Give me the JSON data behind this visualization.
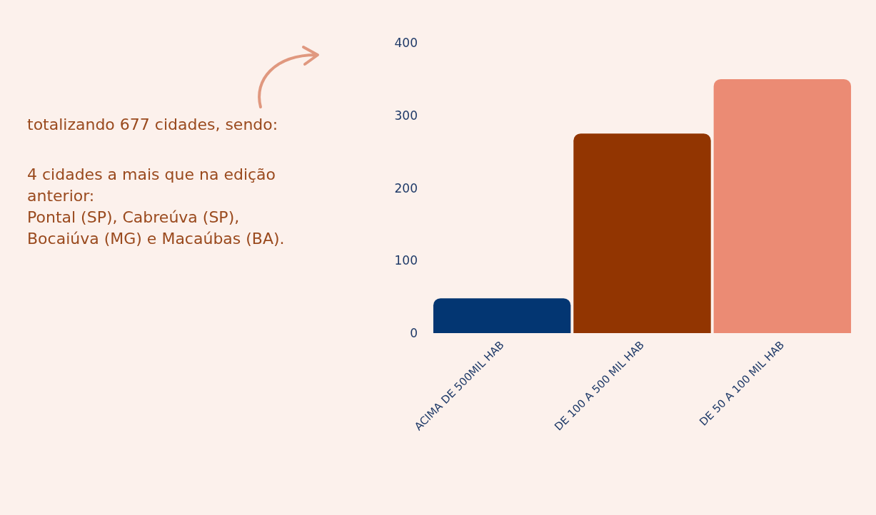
{
  "chart_data": {
    "type": "bar",
    "categories": [
      "ACIMA DE 500MIL HAB",
      "DE 100 A 500 MIL HAB",
      "DE 50 A 100 MIL HAB"
    ],
    "values": [
      48,
      275,
      350
    ],
    "colors": [
      "#033672",
      "#923501",
      "#eb8b74"
    ],
    "ylim": [
      0,
      400
    ],
    "yticks": [
      0,
      100,
      200,
      300,
      400
    ],
    "grid": false,
    "annotations": [
      "totalizando 677 cidades, sendo:",
      "4 cidades a mais que na edição anterior:",
      "Pontal (SP), Cabreúva (SP),",
      "Bocaiúva (MG) e Macaúbas (BA)."
    ]
  }
}
